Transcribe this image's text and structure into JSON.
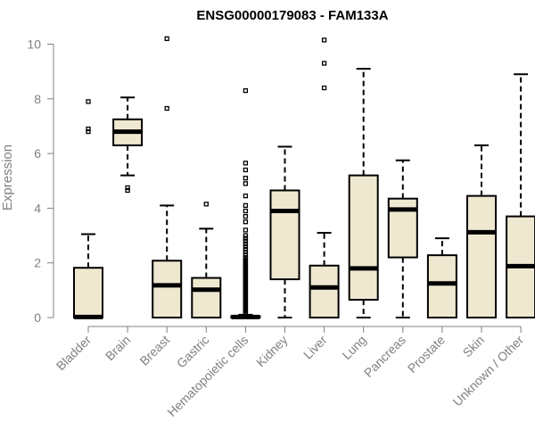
{
  "chart_data": {
    "type": "boxplot",
    "title": "ENSG00000179083 - FAM133A",
    "ylabel": "Expression",
    "ylim": [
      0,
      10
    ],
    "yticks": [
      0,
      2,
      4,
      6,
      8,
      10
    ],
    "box_fill": "#efe8d0",
    "categories": [
      "Bladder",
      "Brain",
      "Breast",
      "Gastric",
      "Hematopoietic cells",
      "Kidney",
      "Liver",
      "Lung",
      "Pancreas",
      "Prostate",
      "Skin",
      "Unknown / Other"
    ],
    "boxes": [
      {
        "category": "Bladder",
        "whisker_low": 0,
        "q1": 0,
        "median": 0.02,
        "q3": 1.82,
        "whisker_high": 3.05,
        "outliers": [
          6.8,
          6.9,
          7.9
        ]
      },
      {
        "category": "Brain",
        "whisker_low": 5.2,
        "q1": 6.3,
        "median": 6.8,
        "q3": 7.25,
        "whisker_high": 8.05,
        "outliers": [
          4.65,
          4.75
        ]
      },
      {
        "category": "Breast",
        "whisker_low": 0,
        "q1": 0,
        "median": 1.18,
        "q3": 2.08,
        "whisker_high": 4.1,
        "outliers": [
          7.65,
          10.2
        ]
      },
      {
        "category": "Gastric",
        "whisker_low": 0,
        "q1": 0,
        "median": 1.02,
        "q3": 1.45,
        "whisker_high": 3.25,
        "outliers": [
          4.15
        ]
      },
      {
        "category": "Hematopoietic cells",
        "whisker_low": 0,
        "q1": 0,
        "median": 0.02,
        "q3": 0.05,
        "whisker_high": 0.1,
        "outliers": [
          0.15,
          0.2,
          0.25,
          0.3,
          0.35,
          0.4,
          0.45,
          0.5,
          0.55,
          0.6,
          0.65,
          0.7,
          0.75,
          0.8,
          0.85,
          0.9,
          0.95,
          1.0,
          1.05,
          1.1,
          1.15,
          1.2,
          1.25,
          1.3,
          1.35,
          1.4,
          1.45,
          1.5,
          1.55,
          1.6,
          1.65,
          1.7,
          1.75,
          1.8,
          1.85,
          1.9,
          1.95,
          2.0,
          2.05,
          2.1,
          2.15,
          2.2,
          2.3,
          2.4,
          2.5,
          2.6,
          2.7,
          2.8,
          2.9,
          3.0,
          3.2,
          3.5,
          3.7,
          3.9,
          4.1,
          4.45,
          4.9,
          5.1,
          5.4,
          5.65,
          8.3
        ]
      },
      {
        "category": "Kidney",
        "whisker_low": 0,
        "q1": 1.4,
        "median": 3.9,
        "q3": 4.65,
        "whisker_high": 6.25,
        "outliers": []
      },
      {
        "category": "Liver",
        "whisker_low": 0,
        "q1": 0,
        "median": 1.1,
        "q3": 1.9,
        "whisker_high": 3.1,
        "outliers": [
          8.4,
          9.3,
          10.15
        ]
      },
      {
        "category": "Lung",
        "whisker_low": 0,
        "q1": 0.65,
        "median": 1.8,
        "q3": 5.2,
        "whisker_high": 9.1,
        "outliers": []
      },
      {
        "category": "Pancreas",
        "whisker_low": 0,
        "q1": 2.2,
        "median": 3.95,
        "q3": 4.35,
        "whisker_high": 5.75,
        "outliers": []
      },
      {
        "category": "Prostate",
        "whisker_low": 0,
        "q1": 0,
        "median": 1.25,
        "q3": 2.28,
        "whisker_high": 2.9,
        "outliers": []
      },
      {
        "category": "Skin",
        "whisker_low": 0,
        "q1": 0,
        "median": 3.12,
        "q3": 4.45,
        "whisker_high": 6.3,
        "outliers": []
      },
      {
        "category": "Unknown / Other",
        "whisker_low": 0,
        "q1": 0,
        "median": 1.88,
        "q3": 3.7,
        "whisker_high": 8.9,
        "outliers": []
      }
    ]
  }
}
